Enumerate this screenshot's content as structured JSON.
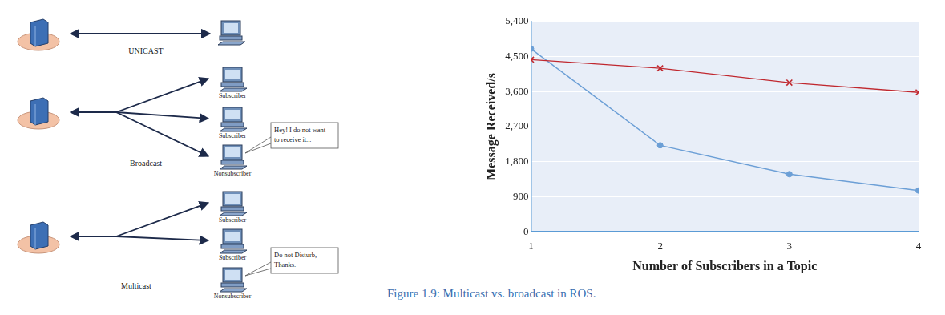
{
  "chart_data": {
    "type": "line",
    "x_label": "Number of Subscribers in a Topic",
    "y_label": "Message Received/s",
    "x": [
      1,
      2,
      3,
      4
    ],
    "series": [
      {
        "color": "#c0282f",
        "marker": "x",
        "values": [
          4420,
          4200,
          3830,
          3580
        ]
      },
      {
        "color": "#6c9fd6",
        "marker": "circle",
        "values": [
          4700,
          2220,
          1480,
          1060
        ]
      }
    ],
    "xlim": [
      1,
      4
    ],
    "xticks": [
      1,
      2,
      3,
      4
    ],
    "ylim": [
      0,
      5400
    ],
    "yticks": [
      0,
      900,
      {
        "value": 1800,
        "label": "1,800"
      },
      {
        "value": 2700,
        "label": "2,700"
      },
      {
        "value": 3600,
        "label": "3,600"
      },
      {
        "value": 4500,
        "label": "4,500"
      },
      {
        "value": 5400,
        "label": "5,400"
      }
    ],
    "grid": true
  },
  "diagram": {
    "rows": [
      {
        "label": "UNICAST"
      },
      {
        "label": "Broadcast",
        "receivers": [
          "Subscriber",
          "Subscriber",
          "Nonsubscriber"
        ],
        "callout": [
          "Hey! I do not want",
          "to receive it..."
        ]
      },
      {
        "label": "Multicast",
        "receivers": [
          "Subscriber",
          "Subscriber",
          "Nonsubscriber"
        ],
        "callout": [
          "Do not Disturb,",
          "Thanks."
        ]
      }
    ]
  },
  "caption": "Figure 1.9: Multicast vs. broadcast in ROS."
}
